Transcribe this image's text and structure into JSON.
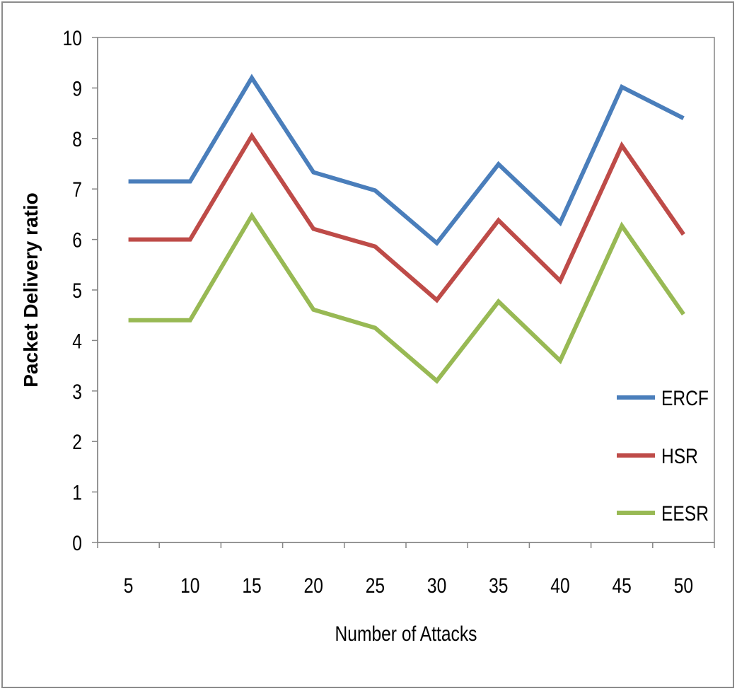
{
  "chart_data": {
    "type": "line",
    "title": "",
    "xlabel": "Number of Attacks",
    "ylabel": "Packet Delivery ratio",
    "categories": [
      "5",
      "10",
      "15",
      "20",
      "25",
      "30",
      "35",
      "40",
      "45",
      "50"
    ],
    "ylim": [
      0,
      10
    ],
    "yticks": [
      "0",
      "1",
      "2",
      "3",
      "4",
      "5",
      "6",
      "7",
      "8",
      "9",
      "10"
    ],
    "grid": false,
    "legend_position": "right",
    "series": [
      {
        "name": "ERCF",
        "color": "#4a7ebb",
        "values": [
          7.15,
          7.15,
          9.2,
          7.33,
          6.97,
          5.93,
          7.49,
          6.33,
          9.02,
          8.4
        ]
      },
      {
        "name": "HSR",
        "color": "#be4b48",
        "values": [
          6.0,
          6.0,
          8.05,
          6.21,
          5.86,
          4.8,
          6.38,
          5.18,
          7.86,
          6.1
        ]
      },
      {
        "name": "EESR",
        "color": "#98b954",
        "values": [
          4.4,
          4.4,
          6.47,
          4.61,
          4.25,
          3.2,
          4.77,
          3.6,
          6.27,
          4.52
        ]
      }
    ]
  }
}
